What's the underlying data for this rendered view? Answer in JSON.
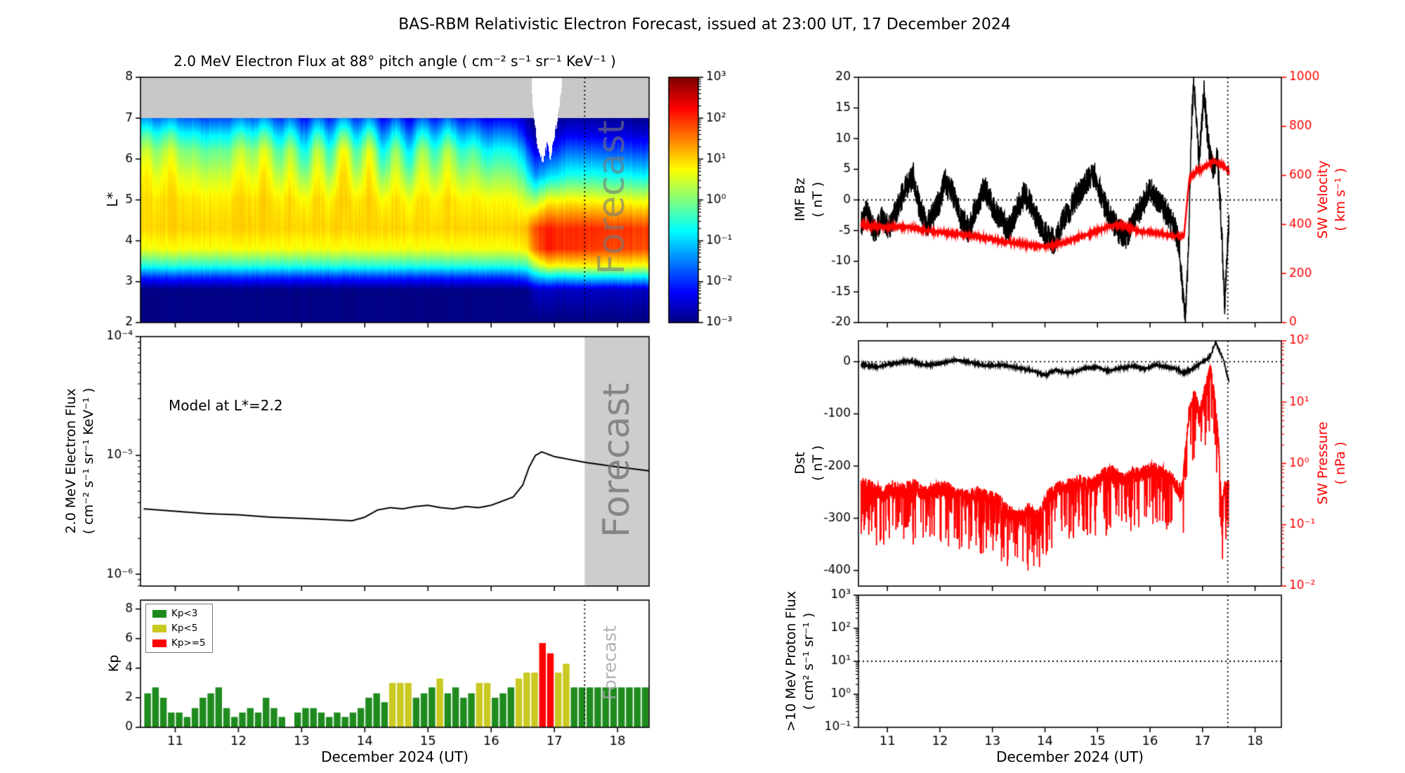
{
  "title": "BAS-RBM Relativistic Electron Forecast, issued at 23:00 UT, 17 December 2024",
  "forecast_label": "Forecast",
  "colors": {
    "kp_green": "#1f8b1f",
    "kp_yellow": "#c9c922",
    "kp_red": "#ff0000",
    "axis_black": "#000000",
    "series_red": "#ff0000",
    "forecast_band": "#cdcdcd",
    "nodata_gray": "#c8c8c8"
  },
  "axes": {
    "xlabel": "December 2024 (UT)",
    "xticks": [
      11,
      12,
      13,
      14,
      15,
      16,
      17,
      18
    ],
    "xlim": [
      10.45,
      18.5
    ],
    "forecast_time": 17.48
  },
  "chart_data": [
    {
      "id": "electron-flux-spectrogram",
      "type": "heatmap",
      "title": "2.0 MeV Electron Flux at 88° pitch angle ( cm⁻² s⁻¹ sr⁻¹ KeV⁻¹ )",
      "ylabel": "L*",
      "ylim": [
        2,
        8
      ],
      "yticks": [
        2,
        3,
        4,
        5,
        6,
        7,
        8
      ],
      "clim_log": [
        -3,
        3
      ],
      "colorbar_ticks": [
        "10³",
        "10²",
        "10¹",
        "10⁰",
        "10⁻¹",
        "10⁻²",
        "10⁻³"
      ],
      "colorbar_tick_values": [
        3,
        2,
        1,
        0,
        -1,
        -2,
        -3
      ],
      "nodata_above_L": 7,
      "grid_L": [
        2,
        2.8,
        3.1,
        3.4,
        3.8,
        4.3,
        5,
        5.6,
        6.2,
        6.6,
        7
      ],
      "grid_times": [
        10.45,
        14,
        16.3,
        16.55,
        16.7,
        16.9,
        17.2,
        17.6,
        18.5
      ],
      "grid_logflux": [
        [
          -3,
          -3,
          -2,
          -0.5,
          0.7,
          1.0,
          0.9,
          0.6,
          0.1,
          -0.6,
          -1.6
        ],
        [
          -3,
          -3,
          -2,
          -0.5,
          0.7,
          1.0,
          0.9,
          0.5,
          0.0,
          -0.8,
          -1.8
        ],
        [
          -3,
          -3,
          -2,
          -0.5,
          0.7,
          1.0,
          0.8,
          0.2,
          -0.5,
          -1.3,
          -2.2
        ],
        [
          -3,
          -3,
          -1.8,
          -0.4,
          0.8,
          1.1,
          0.4,
          -0.6,
          -1.6,
          -2.4,
          -2.8
        ],
        [
          -3,
          -2.6,
          -1.2,
          0.3,
          1.6,
          1.8,
          0.2,
          -1.4,
          -2.4,
          -2.8,
          -3
        ],
        [
          -3,
          -2.6,
          -1.0,
          0.8,
          2.1,
          2.1,
          0.7,
          -1.0,
          -2.2,
          -2.7,
          -3
        ],
        [
          -3,
          -2.6,
          -1.0,
          0.8,
          2.0,
          2.0,
          0.8,
          -0.6,
          -1.6,
          -2.3,
          -2.8
        ],
        [
          -3,
          -2.6,
          -0.9,
          0.8,
          1.9,
          2.0,
          0.7,
          -0.6,
          -1.7,
          -2.4,
          -2.8
        ],
        [
          -3,
          -2.6,
          -0.9,
          0.7,
          1.8,
          1.9,
          0.6,
          -0.8,
          -1.9,
          -2.5,
          -2.9
        ]
      ],
      "white_patch": {
        "t": [
          16.64,
          16.7,
          16.76,
          16.82,
          16.88,
          16.94,
          17.0,
          17.06,
          17.12
        ],
        "L_bottom": [
          7.7,
          6.7,
          6.05,
          5.9,
          6.35,
          6.05,
          6.5,
          7.05,
          7.7
        ]
      }
    },
    {
      "id": "electron-flux-line",
      "type": "line",
      "annotation": "Model at L*=2.2",
      "ylabel_line1": "2.0 MeV Electron Flux",
      "ylabel_line2": "( cm⁻² s⁻¹ sr⁻¹ KeV⁻¹ )",
      "ylim_log": [
        -6.1,
        -4
      ],
      "yticks": [
        {
          "v": -4,
          "label": "10⁻⁴"
        },
        {
          "v": -5,
          "label": "10⁻⁵"
        },
        {
          "v": -6,
          "label": "10⁻⁶"
        }
      ],
      "forecast_band": [
        17.48,
        18.5
      ],
      "x": [
        10.5,
        11.0,
        11.5,
        12.0,
        12.5,
        13.0,
        13.4,
        13.8,
        14.0,
        14.2,
        14.4,
        14.6,
        14.8,
        15.0,
        15.2,
        15.4,
        15.6,
        15.8,
        16.0,
        16.2,
        16.35,
        16.5,
        16.6,
        16.7,
        16.8,
        16.9,
        17.0,
        17.2,
        17.5,
        17.9,
        18.2,
        18.5
      ],
      "y_log": [
        -5.45,
        -5.47,
        -5.49,
        -5.5,
        -5.52,
        -5.53,
        -5.54,
        -5.55,
        -5.52,
        -5.46,
        -5.44,
        -5.45,
        -5.43,
        -5.42,
        -5.44,
        -5.45,
        -5.43,
        -5.44,
        -5.42,
        -5.38,
        -5.35,
        -5.25,
        -5.1,
        -5.0,
        -4.97,
        -4.99,
        -5.01,
        -5.03,
        -5.06,
        -5.09,
        -5.11,
        -5.13
      ]
    },
    {
      "id": "kp-bars",
      "type": "bar",
      "ylabel": "Kp",
      "ylim": [
        0,
        8.6
      ],
      "yticks": [
        0,
        2,
        4,
        6,
        8
      ],
      "t0": 10.5,
      "dt": 0.125,
      "values": [
        2.3,
        2.7,
        2.0,
        1.0,
        1.0,
        0.7,
        1.3,
        2.0,
        2.3,
        2.7,
        1.3,
        0.7,
        1.0,
        1.3,
        1.0,
        2.0,
        1.3,
        0.7,
        0.0,
        1.0,
        1.3,
        1.3,
        1.0,
        0.7,
        1.0,
        0.7,
        1.0,
        1.3,
        2.0,
        2.3,
        1.7,
        3.0,
        3.0,
        3.0,
        2.0,
        2.3,
        2.7,
        3.3,
        2.3,
        2.7,
        2.0,
        2.3,
        3.0,
        3.0,
        2.0,
        2.3,
        2.7,
        3.3,
        3.7,
        3.7,
        5.7,
        5.0,
        3.7,
        4.3,
        2.7,
        2.7,
        2.7,
        2.7,
        2.7,
        2.7,
        2.7,
        2.7,
        2.7,
        2.7
      ],
      "thresholds": {
        "yellow": 3,
        "red": 5
      },
      "legend": [
        {
          "label": "Kp<3",
          "color": "#1f8b1f"
        },
        {
          "label": "Kp<5",
          "color": "#c9c922"
        },
        {
          "label": "Kp>=5",
          "color": "#ff0000"
        }
      ]
    },
    {
      "id": "imf-sw-velocity",
      "type": "dual-line",
      "left": {
        "label_line1": "IMF Bz",
        "label_line2": "( nT )",
        "ylim": [
          -20,
          20
        ],
        "yticks": [
          -20,
          -15,
          -10,
          -5,
          0,
          5,
          10,
          15,
          20
        ],
        "hline": 0
      },
      "right": {
        "label_line1": "SW Velocity",
        "label_line2": "( km s⁻¹ )",
        "ylim": [
          0,
          1000
        ],
        "yticks": [
          0,
          200,
          400,
          600,
          800,
          1000
        ]
      },
      "bz": {
        "x": [
          10.5,
          10.6,
          10.75,
          10.9,
          11.05,
          11.2,
          11.35,
          11.5,
          11.6,
          11.75,
          11.9,
          12.0,
          12.1,
          12.25,
          12.4,
          12.55,
          12.7,
          12.85,
          13.0,
          13.15,
          13.3,
          13.45,
          13.6,
          13.75,
          13.9,
          14.05,
          14.2,
          14.35,
          14.5,
          14.65,
          14.8,
          14.95,
          15.1,
          15.25,
          15.4,
          15.55,
          15.7,
          15.85,
          16.0,
          16.15,
          16.3,
          16.45,
          16.55,
          16.62,
          16.68,
          16.73,
          16.78,
          16.83,
          16.88,
          16.93,
          16.98,
          17.03,
          17.08,
          17.13,
          17.2,
          17.28,
          17.35,
          17.42,
          17.47,
          17.5
        ],
        "y": [
          -4,
          -2,
          -5,
          -3,
          -4.5,
          -1,
          2,
          4,
          -1,
          -4,
          -2,
          0,
          3,
          1,
          -3,
          -5,
          -1,
          2,
          -1,
          -3,
          -5,
          -2,
          1,
          -1,
          -4,
          -6,
          -7,
          -3,
          -1,
          1,
          3,
          4,
          0,
          -3,
          -5,
          -6,
          -3,
          -1,
          2,
          0,
          -2,
          -4,
          -7,
          -15,
          -19,
          -8,
          10,
          19,
          14,
          6,
          12,
          18,
          12,
          8,
          5,
          7,
          -2,
          -17,
          -8,
          -4
        ],
        "noise": 2.2
      },
      "velocity": {
        "x": [
          10.5,
          10.8,
          11.1,
          11.4,
          11.7,
          12.0,
          12.3,
          12.6,
          12.9,
          13.2,
          13.5,
          13.8,
          14.1,
          14.4,
          14.7,
          15.0,
          15.2,
          15.4,
          15.6,
          15.8,
          16.0,
          16.2,
          16.4,
          16.55,
          16.65,
          16.7,
          16.75,
          16.85,
          17.0,
          17.1,
          17.2,
          17.3,
          17.4,
          17.5
        ],
        "y": [
          400,
          392,
          388,
          390,
          378,
          368,
          362,
          355,
          345,
          332,
          322,
          315,
          312,
          328,
          352,
          372,
          392,
          400,
          386,
          372,
          368,
          362,
          356,
          352,
          358,
          480,
          590,
          610,
          628,
          645,
          658,
          650,
          635,
          618
        ],
        "noise": 4
      }
    },
    {
      "id": "dst-sw-pressure",
      "type": "dual-line",
      "left": {
        "label_line1": "Dst",
        "label_line2": "( nT )",
        "ylim": [
          -430,
          40
        ],
        "yticks": [
          0,
          -100,
          -200,
          -300,
          -400
        ],
        "hline": 0
      },
      "right": {
        "label_line1": "SW Pressure",
        "label_line2": "( nPa )",
        "ylim_log": [
          -2,
          2
        ],
        "yticks": [
          {
            "v": 2,
            "label": "10²"
          },
          {
            "v": 1,
            "label": "10¹"
          },
          {
            "v": 0,
            "label": "10⁰"
          },
          {
            "v": -1,
            "label": "10⁻¹"
          },
          {
            "v": -2,
            "label": "10⁻²"
          }
        ]
      },
      "dst": {
        "x": [
          10.5,
          10.8,
          11.1,
          11.4,
          11.7,
          12.0,
          12.3,
          12.6,
          12.9,
          13.2,
          13.5,
          13.8,
          14.0,
          14.2,
          14.45,
          14.7,
          15.0,
          15.2,
          15.45,
          15.7,
          15.9,
          16.1,
          16.3,
          16.5,
          16.65,
          16.8,
          16.95,
          17.05,
          17.15,
          17.25,
          17.32,
          17.4,
          17.45,
          17.5
        ],
        "y": [
          -6,
          -10,
          -4,
          2,
          -6,
          -4,
          4,
          -2,
          -8,
          -6,
          -12,
          -18,
          -26,
          -16,
          -22,
          -14,
          -10,
          -18,
          -12,
          -8,
          -14,
          -6,
          -10,
          -14,
          -22,
          -14,
          -4,
          2,
          12,
          38,
          20,
          4,
          -18,
          -38
        ],
        "noise": 2
      },
      "pressure_log": {
        "x": [
          10.5,
          10.7,
          10.9,
          11.1,
          11.3,
          11.5,
          11.7,
          11.9,
          12.1,
          12.3,
          12.5,
          12.7,
          12.9,
          13.1,
          13.3,
          13.5,
          13.7,
          13.9,
          14.1,
          14.3,
          14.5,
          14.7,
          14.9,
          15.1,
          15.3,
          15.5,
          15.7,
          15.9,
          16.1,
          16.3,
          16.45,
          16.6,
          16.68,
          16.75,
          16.85,
          16.95,
          17.05,
          17.15,
          17.22,
          17.3,
          17.36,
          17.42,
          17.5
        ],
        "y": [
          -0.35,
          -0.4,
          -0.5,
          -0.4,
          -0.45,
          -0.35,
          -0.5,
          -0.45,
          -0.4,
          -0.5,
          -0.55,
          -0.5,
          -0.55,
          -0.6,
          -0.8,
          -0.9,
          -0.75,
          -0.85,
          -0.5,
          -0.4,
          -0.35,
          -0.3,
          -0.35,
          -0.2,
          -0.15,
          -0.25,
          -0.2,
          -0.15,
          -0.1,
          -0.2,
          -0.3,
          -0.5,
          0.3,
          0.9,
          1.1,
          0.8,
          1.2,
          1.5,
          1.1,
          0.4,
          -0.7,
          -0.4,
          -0.35
        ],
        "noise": 0.13,
        "spike": 0.9
      }
    },
    {
      "id": "proton-flux",
      "type": "line",
      "ylabel_line1": ">10 MeV Proton Flux",
      "ylabel_line2": "( cm² s⁻¹ sr⁻¹ )",
      "ylim_log": [
        -1,
        3
      ],
      "yticks": [
        {
          "v": 3,
          "label": "10³"
        },
        {
          "v": 2,
          "label": "10²"
        },
        {
          "v": 1,
          "label": "10¹"
        },
        {
          "v": 0,
          "label": "10⁰"
        },
        {
          "v": -1,
          "label": "10⁻¹"
        }
      ],
      "hline_log": 1,
      "series": []
    }
  ]
}
